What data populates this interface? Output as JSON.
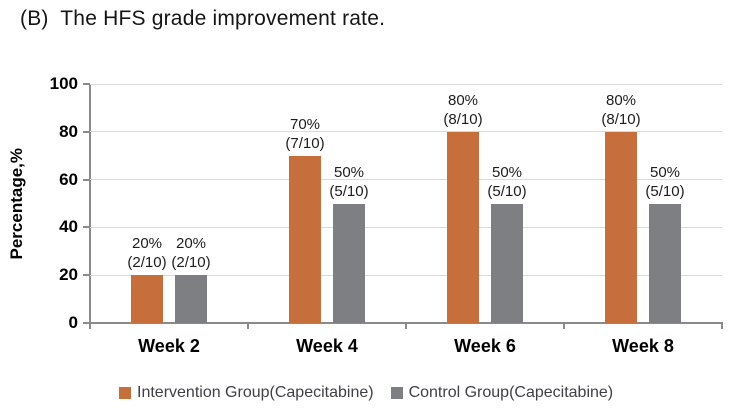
{
  "title": "(B)  The HFS grade improvement rate.",
  "chart_data": {
    "type": "bar",
    "categories": [
      "Week 2",
      "Week 4",
      "Week 6",
      "Week 8"
    ],
    "series": [
      {
        "name": "Intervention Group(Capecitabine)",
        "color": "#c76f3c",
        "values": [
          20,
          70,
          80,
          80
        ],
        "labels": [
          [
            "20%",
            "(2/10)"
          ],
          [
            "70%",
            "(7/10)"
          ],
          [
            "80%",
            "(8/10)"
          ],
          [
            "80%",
            "(8/10)"
          ]
        ]
      },
      {
        "name": "Control Group(Capecitabine)",
        "color": "#7e7f83",
        "values": [
          20,
          50,
          50,
          50
        ],
        "labels": [
          [
            "20%",
            "(2/10)"
          ],
          [
            "50%",
            "(5/10)"
          ],
          [
            "50%",
            "(5/10)"
          ],
          [
            "50%",
            "(5/10)"
          ]
        ]
      }
    ],
    "title": "(B)  The HFS grade improvement rate.",
    "xlabel": "",
    "ylabel": "Percentage,%",
    "ylim": [
      0,
      100
    ],
    "yticks": [
      0,
      20,
      40,
      60,
      80,
      100
    ],
    "grid": true,
    "legend_position": "bottom"
  }
}
